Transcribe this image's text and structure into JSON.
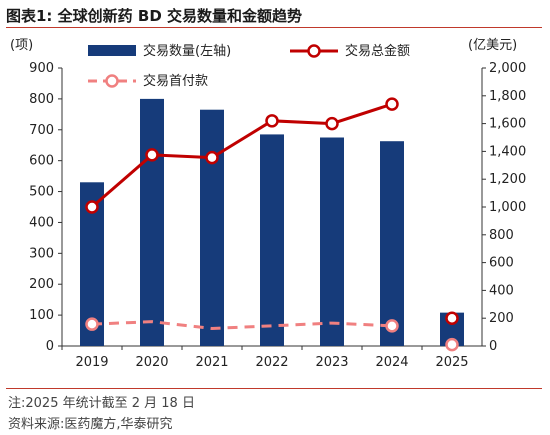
{
  "title": "图表1:  全球创新药 BD 交易数量和金额趋势",
  "note": "注:2025 年统计截至 2 月 18 日",
  "source": "资料来源:医药魔方,华泰研究",
  "colors": {
    "bar": "#163b7a",
    "line": "#c00000",
    "dashed": "#f08080",
    "rule": "#c0392b"
  },
  "chart_data": {
    "type": "bar+line",
    "categories": [
      "2019",
      "2020",
      "2021",
      "2022",
      "2023",
      "2024",
      "2025"
    ],
    "y_left": {
      "unit_label": "(项)",
      "ylim": [
        0,
        900
      ],
      "ticks": [
        "0",
        "100",
        "200",
        "300",
        "400",
        "500",
        "600",
        "700",
        "800",
        "900"
      ]
    },
    "y_right": {
      "unit_label": "(亿美元)",
      "ylim": [
        0,
        2000
      ],
      "ticks": [
        "0",
        "200",
        "400",
        "600",
        "800",
        "1,000",
        "1,200",
        "1,400",
        "1,600",
        "1,800",
        "2,000"
      ]
    },
    "series": [
      {
        "name": "交易数量(左轴)",
        "type": "bar",
        "axis": "left",
        "values": [
          530,
          800,
          765,
          685,
          675,
          663,
          108
        ]
      },
      {
        "name": "交易总金额",
        "type": "line",
        "axis": "right",
        "values": [
          1000,
          1375,
          1355,
          1620,
          1600,
          1740,
          null
        ]
      },
      {
        "name": "交易首付款",
        "type": "dashed-line",
        "axis": "right",
        "values": [
          157,
          175,
          126,
          145,
          165,
          145,
          null
        ]
      }
    ],
    "extra_points_2025": {
      "total_amount": 200,
      "upfront": 10
    },
    "grid": false,
    "legend": "top"
  }
}
